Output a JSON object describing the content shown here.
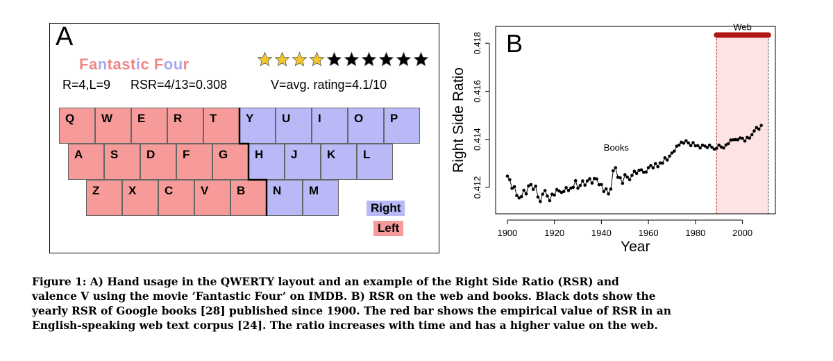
{
  "panel_a": {
    "letter": "A",
    "title_letters": [
      {
        "ch": "F",
        "side": "left"
      },
      {
        "ch": "a",
        "side": "left"
      },
      {
        "ch": "n",
        "side": "right"
      },
      {
        "ch": "t",
        "side": "left"
      },
      {
        "ch": "a",
        "side": "left"
      },
      {
        "ch": "s",
        "side": "left"
      },
      {
        "ch": "t",
        "side": "left"
      },
      {
        "ch": "i",
        "side": "right"
      },
      {
        "ch": "c",
        "side": "left"
      },
      {
        "ch": " ",
        "side": "left"
      },
      {
        "ch": "F",
        "side": "left"
      },
      {
        "ch": "o",
        "side": "right"
      },
      {
        "ch": "u",
        "side": "right"
      },
      {
        "ch": "r",
        "side": "left"
      }
    ],
    "counts_text": "R=4,L=9",
    "rsr_text": "RSR=4/13=0.308",
    "valence_text": "V=avg. rating=4.1/10",
    "rating": 4.1,
    "rating_max": 10,
    "star_color_filled": "#f2c62e",
    "star_color_empty": "#000000",
    "keyboard_rows": [
      [
        {
          "k": "Q",
          "s": "left"
        },
        {
          "k": "W",
          "s": "left"
        },
        {
          "k": "E",
          "s": "left"
        },
        {
          "k": "R",
          "s": "left"
        },
        {
          "k": "T",
          "s": "left"
        },
        {
          "k": "Y",
          "s": "right"
        },
        {
          "k": "U",
          "s": "right"
        },
        {
          "k": "I",
          "s": "right"
        },
        {
          "k": "O",
          "s": "right"
        },
        {
          "k": "P",
          "s": "right"
        }
      ],
      [
        {
          "k": "A",
          "s": "left"
        },
        {
          "k": "S",
          "s": "left"
        },
        {
          "k": "D",
          "s": "left"
        },
        {
          "k": "F",
          "s": "left"
        },
        {
          "k": "G",
          "s": "left"
        },
        {
          "k": "H",
          "s": "right"
        },
        {
          "k": "J",
          "s": "right"
        },
        {
          "k": "K",
          "s": "right"
        },
        {
          "k": "L",
          "s": "right"
        }
      ],
      [
        {
          "k": "Z",
          "s": "left"
        },
        {
          "k": "X",
          "s": "left"
        },
        {
          "k": "C",
          "s": "left"
        },
        {
          "k": "V",
          "s": "left"
        },
        {
          "k": "B",
          "s": "left"
        },
        {
          "k": "N",
          "s": "right"
        },
        {
          "k": "M",
          "s": "right"
        }
      ]
    ],
    "legend": {
      "right": "Right",
      "left": "Left"
    },
    "colors": {
      "left": "#f79a9a",
      "right": "#b9b9f7"
    }
  },
  "panel_b": {
    "letter": "B",
    "chart_data": {
      "type": "scatter",
      "xlabel": "Year",
      "ylabel": "Right Side Ratio",
      "xlim": [
        1895,
        2014
      ],
      "ylim": [
        0.4109,
        0.4187
      ],
      "xticks": [
        1900,
        1920,
        1940,
        1960,
        1980,
        2000
      ],
      "yticks": [
        0.412,
        0.414,
        0.416,
        0.418
      ],
      "books_label": "Books",
      "web_label": "Web",
      "web_range": [
        1989,
        2011
      ],
      "web_value": 0.41834,
      "web_color": "#b01818",
      "web_fill": "#fde3e3",
      "books": {
        "x": [
          1900,
          1901,
          1902,
          1903,
          1904,
          1905,
          1906,
          1907,
          1908,
          1909,
          1910,
          1911,
          1912,
          1913,
          1914,
          1915,
          1916,
          1917,
          1918,
          1919,
          1920,
          1921,
          1922,
          1923,
          1924,
          1925,
          1926,
          1927,
          1928,
          1929,
          1930,
          1931,
          1932,
          1933,
          1934,
          1935,
          1936,
          1937,
          1938,
          1939,
          1940,
          1941,
          1942,
          1943,
          1944,
          1945,
          1946,
          1947,
          1948,
          1949,
          1950,
          1951,
          1952,
          1953,
          1954,
          1955,
          1956,
          1957,
          1958,
          1959,
          1960,
          1961,
          1962,
          1963,
          1964,
          1965,
          1966,
          1967,
          1968,
          1969,
          1970,
          1971,
          1972,
          1973,
          1974,
          1975,
          1976,
          1977,
          1978,
          1979,
          1980,
          1981,
          1982,
          1983,
          1984,
          1985,
          1986,
          1987,
          1988,
          1989,
          1990,
          1991,
          1992,
          1993,
          1994,
          1995,
          1996,
          1997,
          1998,
          1999,
          2000,
          2001,
          2002,
          2003,
          2004,
          2005,
          2006,
          2007,
          2008
        ],
        "y": [
          0.41247,
          0.41232,
          0.41196,
          0.41203,
          0.41166,
          0.41156,
          0.41162,
          0.41188,
          0.41173,
          0.41206,
          0.41212,
          0.41192,
          0.41205,
          0.4116,
          0.41141,
          0.41172,
          0.41187,
          0.41164,
          0.41145,
          0.41172,
          0.41168,
          0.41191,
          0.41185,
          0.41179,
          0.41183,
          0.41199,
          0.41187,
          0.41197,
          0.412,
          0.41228,
          0.41197,
          0.41208,
          0.41227,
          0.41209,
          0.41227,
          0.41236,
          0.41218,
          0.41237,
          0.41235,
          0.41211,
          0.41212,
          0.41183,
          0.41194,
          0.41173,
          0.41193,
          0.41269,
          0.41282,
          0.41242,
          0.4124,
          0.41217,
          0.41253,
          0.41243,
          0.41232,
          0.4125,
          0.41267,
          0.41258,
          0.41271,
          0.41273,
          0.41263,
          0.41264,
          0.41282,
          0.41291,
          0.41281,
          0.41299,
          0.41286,
          0.41302,
          0.41301,
          0.41323,
          0.41314,
          0.4133,
          0.41343,
          0.41351,
          0.41371,
          0.41376,
          0.41388,
          0.41384,
          0.41394,
          0.41385,
          0.41374,
          0.41386,
          0.41373,
          0.41374,
          0.41364,
          0.41376,
          0.41372,
          0.41366,
          0.41376,
          0.41367,
          0.41359,
          0.41363,
          0.41376,
          0.41368,
          0.41364,
          0.41377,
          0.41382,
          0.41397,
          0.41398,
          0.41399,
          0.41398,
          0.41406,
          0.41404,
          0.41393,
          0.41408,
          0.41405,
          0.41419,
          0.41435,
          0.41449,
          0.41442,
          0.41458
        ]
      }
    }
  },
  "caption": {
    "lines": [
      "Figure 1:   A) Hand usage in the QWERTY layout and an example of the Right Side Ratio (RSR) and",
      "valence V using the movie ’Fantastic Four’ on IMDB. B) RSR on the web and books. Black dots show the",
      "yearly RSR of Google books [28] published since 1900. The red bar shows the empirical value of RSR in an",
      "English-speaking web text corpus [24]. The ratio increases with time and has a higher value on the web."
    ]
  }
}
